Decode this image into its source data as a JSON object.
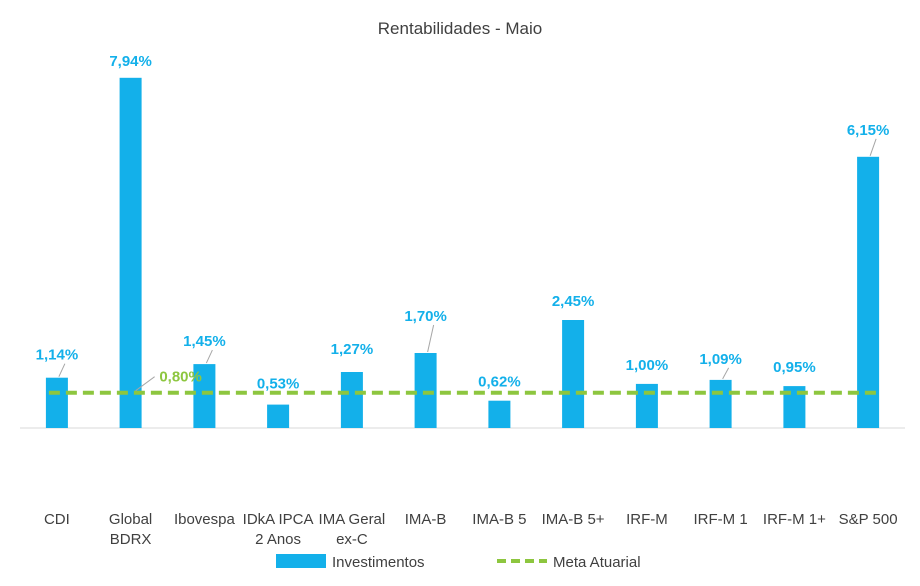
{
  "chart_data": {
    "type": "bar",
    "title": "Rentabilidades - Maio",
    "categories": [
      [
        "CDI"
      ],
      [
        "Global",
        "BDRX"
      ],
      [
        "Ibovespa"
      ],
      [
        "IDkA IPCA",
        "2 Anos"
      ],
      [
        "IMA Geral",
        "ex-C"
      ],
      [
        "IMA-B"
      ],
      [
        "IMA-B 5"
      ],
      [
        "IMA-B 5+"
      ],
      [
        "IRF-M"
      ],
      [
        "IRF-M 1"
      ],
      [
        "IRF-M 1+"
      ],
      [
        "S&P 500"
      ]
    ],
    "series": [
      {
        "name": "Investimentos",
        "color": "#13B0EA",
        "values": [
          1.14,
          7.94,
          1.45,
          0.53,
          1.27,
          1.7,
          0.62,
          2.45,
          1.0,
          1.09,
          0.95,
          6.15
        ],
        "labels": [
          "1,14%",
          "7,94%",
          "1,45%",
          "0,53%",
          "1,27%",
          "1,70%",
          "0,62%",
          "2,45%",
          "1,00%",
          "1,09%",
          "0,95%",
          "6,15%"
        ]
      },
      {
        "name": "Meta Atuarial",
        "type": "dashed-line",
        "color": "#8DC63F",
        "value": 0.8,
        "label": "0,80%"
      }
    ],
    "ylim": [
      -0.04,
      9.0
    ],
    "grid": false,
    "legend_position": "bottom"
  }
}
